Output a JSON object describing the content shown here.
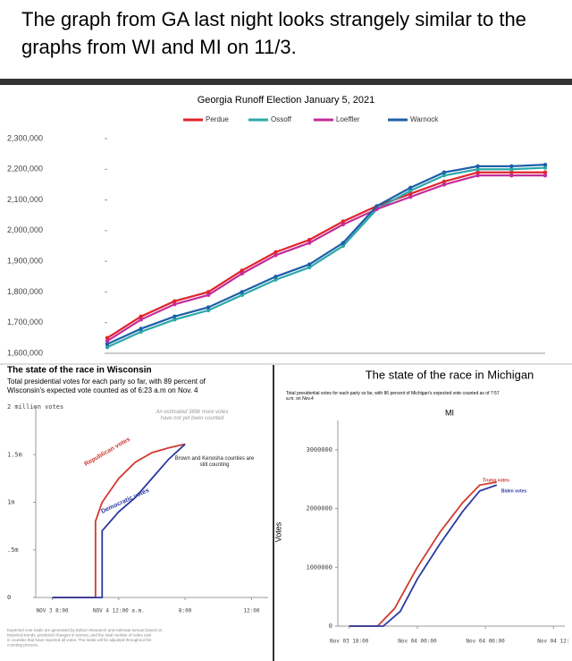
{
  "caption": "The graph from GA last night looks strangely similar to the graphs from WI and MI on 11/3.",
  "chart_data": [
    {
      "type": "line",
      "title": "Georgia Runoff Election January 5, 2021",
      "categories": [
        null,
        null,
        null,
        null,
        null,
        null,
        null,
        null,
        null,
        null,
        null,
        null,
        null,
        null
      ],
      "series": [
        {
          "name": "Perdue",
          "color": "#e0232b",
          "values": [
            1650000,
            1720000,
            1770000,
            1800000,
            1870000,
            1930000,
            1970000,
            2030000,
            2080000,
            2120000,
            2160000,
            2190000,
            2190000,
            2190000
          ]
        },
        {
          "name": "Ossoff",
          "color": "#2aa8a8",
          "values": [
            1620000,
            1670000,
            1710000,
            1740000,
            1790000,
            1840000,
            1880000,
            1950000,
            2070000,
            2130000,
            2180000,
            2200000,
            2200000,
            2205000
          ]
        },
        {
          "name": "Loeffler",
          "color": "#c42c9a",
          "values": [
            1640000,
            1710000,
            1760000,
            1790000,
            1860000,
            1920000,
            1960000,
            2020000,
            2070000,
            2110000,
            2150000,
            2180000,
            2180000,
            2180000
          ]
        },
        {
          "name": "Warnock",
          "color": "#1d5fa8",
          "values": [
            1630000,
            1680000,
            1720000,
            1750000,
            1800000,
            1850000,
            1890000,
            1960000,
            2080000,
            2140000,
            2190000,
            2210000,
            2210000,
            2215000
          ]
        }
      ],
      "ylim": [
        1600000,
        2300000
      ],
      "yticks": [
        {
          "value": 1600000,
          "label": "1,600,000"
        },
        {
          "value": 1700000,
          "label": "1,700,000"
        },
        {
          "value": 1800000,
          "label": "1,800,000"
        },
        {
          "value": 1900000,
          "label": "1,900,000"
        },
        {
          "value": 2000000,
          "label": "2,000,000"
        },
        {
          "value": 2100000,
          "label": "2,100,000"
        },
        {
          "value": 2200000,
          "label": "2,200,000"
        },
        {
          "value": 2300000,
          "label": "2,300,000"
        }
      ],
      "legend": "top",
      "markers": true
    },
    {
      "type": "line",
      "title": "The state of the race in Wisconsin",
      "subtitle": "Total presidential votes for each party so far, with 89 percent of Wisconsin's expected vote counted as of 6:23 a.m on Nov. 4",
      "series": [
        {
          "name": "Republican votes",
          "color": "#d03a2f",
          "x": [
            0,
            2.6,
            2.6,
            3,
            4,
            5,
            6,
            7,
            8
          ],
          "values": [
            0,
            0,
            800000,
            1000000,
            1250000,
            1420000,
            1520000,
            1570000,
            1610000
          ]
        },
        {
          "name": "Democratic votes",
          "color": "#2a3aa0",
          "x": [
            0,
            3,
            3,
            4,
            5,
            6,
            7,
            8
          ],
          "values": [
            0,
            0,
            700000,
            900000,
            1050000,
            1250000,
            1450000,
            1610000
          ]
        }
      ],
      "xlim": [
        -1,
        13
      ],
      "xticks": [
        {
          "value": 0,
          "label": "NOV 3 8:00"
        },
        {
          "value": 4,
          "label": "NOV 4 12:00 a.m."
        },
        {
          "value": 8,
          "label": "8:00"
        },
        {
          "value": 12,
          "label": "12:00"
        }
      ],
      "ylim": [
        0,
        2000000
      ],
      "yticks": [
        0,
        {
          "value": 500000,
          "label": ".5m"
        },
        {
          "value": 1000000,
          "label": "1m"
        },
        {
          "value": 1500000,
          "label": "1.5m"
        },
        {
          "value": 2000000,
          "label": "2 million votes"
        }
      ],
      "annotations": [
        "An estimated 389k more votes have not yet been counted",
        "Brown and Kenosha counties are still counting"
      ],
      "note": "Expected vote totals are generated by Edison Research and estimate turnout based on historical trends, predicted changes in turnout, and the total number of votes cast in counties that have reported all votes. The totals will be adjusted throughout the counting process."
    },
    {
      "type": "line",
      "title": "The state of the race in Michigan",
      "subtitle": "Total presidential votes for each party so far, with 86 percent of Michigan's expected vote counted as of 7:57 a.m. on Nov.4",
      "label": "MI",
      "ylabel": "Votes",
      "series": [
        {
          "name": "Trump votes",
          "color": "#d03a2f",
          "x": [
            0,
            2.5,
            4,
            6,
            8,
            10,
            11.5,
            13
          ],
          "values": [
            0,
            0,
            300000,
            1000000,
            1600000,
            2100000,
            2400000,
            2450000
          ]
        },
        {
          "name": "Biden votes",
          "color": "#2a3aa0",
          "x": [
            0,
            3,
            4.5,
            6,
            8,
            10,
            11.5,
            13
          ],
          "values": [
            0,
            0,
            250000,
            800000,
            1400000,
            1950000,
            2300000,
            2400000
          ]
        }
      ],
      "xlim": [
        -1,
        19
      ],
      "xticks": [
        {
          "value": 0,
          "label": "Nov 03 18:00"
        },
        {
          "value": 6,
          "label": "Nov 04 00:00"
        },
        {
          "value": 12,
          "label": "Nov 04 06:00"
        },
        {
          "value": 18,
          "label": "Nov 04 12:"
        }
      ],
      "ylim": [
        0,
        3500000
      ],
      "yticks": [
        0,
        1000000,
        2000000,
        3000000
      ]
    }
  ]
}
